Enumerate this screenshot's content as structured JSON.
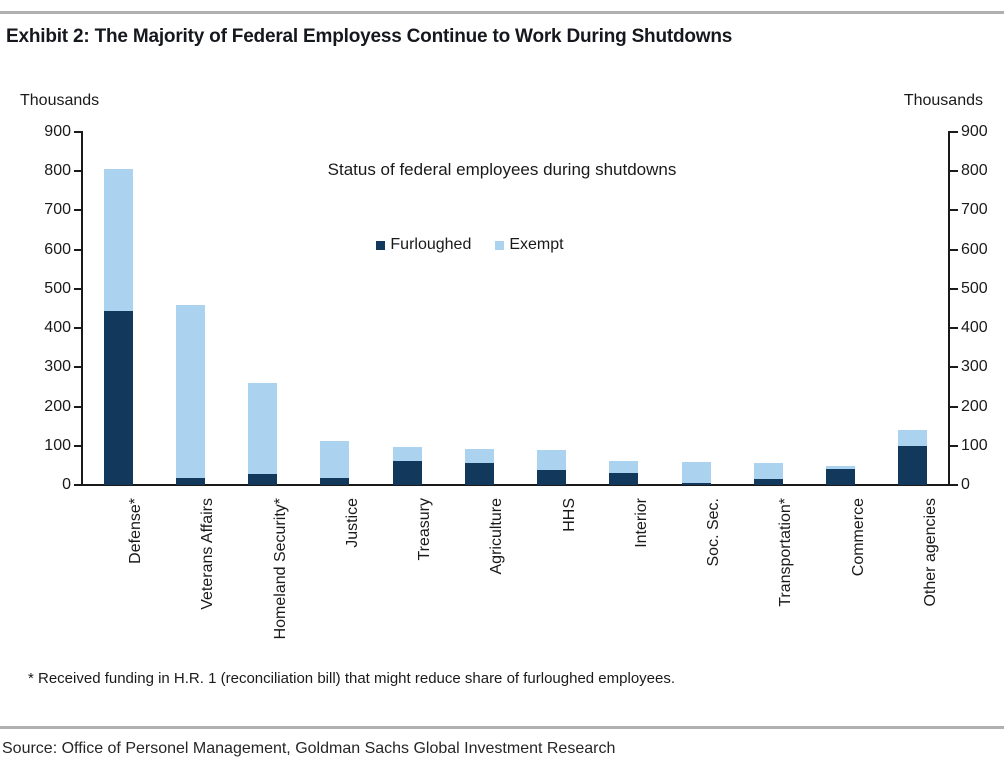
{
  "header": {
    "exhibit_title": "Exhibit 2: The Majority of Federal Employess Continue to Work During Shutdowns"
  },
  "footnote": "* Received funding in H.R. 1 (reconciliation bill) that might reduce share of furloughed employees.",
  "source": "Source: Office of Personel Management, Goldman Sachs Global Investment Research",
  "colors": {
    "furloughed_navy": "#12395c",
    "exempt_light_blue": "#abd2ee",
    "axis_black": "#1a1a1a",
    "divider_gray": "#b0b0b0"
  },
  "chart_data": {
    "type": "bar",
    "stacked": true,
    "title": "Status of federal employees during shutdowns",
    "unit_label": "Thousands",
    "xlabel": "",
    "ylabel": "Thousands",
    "ylim": [
      0,
      900
    ],
    "yticks": [
      0,
      100,
      200,
      300,
      400,
      500,
      600,
      700,
      800,
      900
    ],
    "grid": false,
    "legend_position": "top-center",
    "legend_entries": [
      "Furloughed",
      "Exempt"
    ],
    "categories": [
      "Defense*",
      "Veterans Affairs",
      "Homeland Security*",
      "Justice",
      "Treasury",
      "Agriculture",
      "HHS",
      "Interior",
      "Soc. Sec.",
      "Transportation*",
      "Commerce",
      "Other agencies"
    ],
    "series": [
      {
        "name": "Furloughed",
        "color": "#12395c",
        "values": [
          443,
          17,
          27,
          17,
          60,
          55,
          38,
          30,
          6,
          16,
          40,
          100
        ]
      },
      {
        "name": "Exempt",
        "color": "#abd2ee",
        "values": [
          362,
          443,
          233,
          96,
          37,
          38,
          51,
          32,
          52,
          41,
          8,
          40
        ]
      }
    ],
    "totals": [
      805,
      460,
      260,
      113,
      97,
      93,
      89,
      62,
      58,
      57,
      48,
      140
    ]
  }
}
